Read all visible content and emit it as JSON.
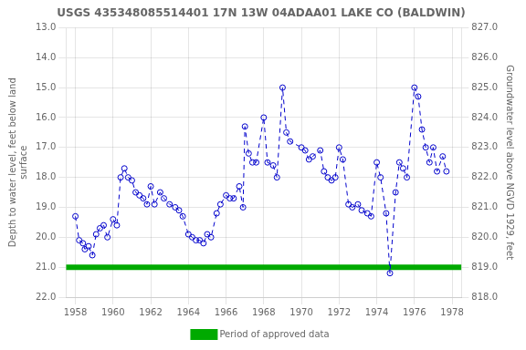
{
  "chart_data": {
    "type": "line",
    "title": "USGS 435348085514401 17N 13W 04ADAA01 LAKE CO (BALDWIN)",
    "ylabel": "Depth to water level, feet below land\nsurface",
    "y2label": "Groundwater level above NGVD 1929, feet",
    "x": [
      1958.0,
      1958.2,
      1958.4,
      1958.5,
      1958.7,
      1958.9,
      1959.1,
      1959.3,
      1959.5,
      1959.7,
      1960.0,
      1960.2,
      1960.4,
      1960.6,
      1960.8,
      1961.0,
      1961.2,
      1961.4,
      1961.6,
      1961.8,
      1962.0,
      1962.2,
      1962.5,
      1962.7,
      1963.0,
      1963.3,
      1963.5,
      1963.7,
      1964.0,
      1964.2,
      1964.4,
      1964.6,
      1964.8,
      1965.0,
      1965.2,
      1965.5,
      1965.7,
      1966.0,
      1966.2,
      1966.4,
      1966.7,
      1966.9,
      1967.0,
      1967.2,
      1967.4,
      1967.6,
      1968.0,
      1968.2,
      1968.5,
      1968.7,
      1969.0,
      1969.2,
      1969.4,
      1970.0,
      1970.2,
      1970.4,
      1970.6,
      1971.0,
      1971.2,
      1971.4,
      1971.6,
      1971.8,
      1972.0,
      1972.2,
      1972.5,
      1972.7,
      1973.0,
      1973.2,
      1973.5,
      1973.7,
      1974.0,
      1974.2,
      1974.5,
      1974.7,
      1975.0,
      1975.2,
      1975.4,
      1975.6,
      1976.0,
      1976.2,
      1976.4,
      1976.6,
      1976.8,
      1977.0,
      1977.2,
      1977.5,
      1977.7
    ],
    "series": [
      {
        "color": "#0000cc",
        "marker": "circle",
        "line_style": "dashed",
        "values": [
          19.3,
          20.1,
          20.2,
          20.4,
          20.3,
          20.6,
          19.9,
          19.7,
          19.6,
          20.0,
          19.4,
          19.6,
          18.0,
          17.7,
          18.0,
          18.1,
          18.5,
          18.6,
          18.7,
          18.9,
          18.3,
          18.9,
          18.5,
          18.7,
          18.9,
          19.0,
          19.1,
          19.3,
          19.9,
          20.0,
          20.1,
          20.1,
          20.2,
          19.9,
          20.0,
          19.2,
          18.9,
          18.6,
          18.7,
          18.7,
          18.3,
          19.0,
          16.3,
          17.2,
          17.5,
          17.5,
          16.0,
          17.5,
          17.6,
          18.0,
          15.0,
          16.5,
          16.8,
          17.0,
          17.1,
          17.4,
          17.3,
          17.1,
          17.8,
          18.0,
          18.1,
          18.0,
          17.0,
          17.4,
          18.9,
          19.0,
          18.9,
          19.1,
          19.2,
          19.3,
          17.5,
          18.0,
          19.2,
          21.2,
          18.5,
          17.5,
          17.7,
          18.0,
          15.0,
          15.3,
          16.4,
          17.0,
          17.5,
          17.0,
          17.8,
          17.3,
          17.8
        ]
      },
      {
        "name": "Period of approved data",
        "color": "#00aa00",
        "line_style": "solid",
        "x": [
          1957.5,
          1978.5
        ],
        "values": [
          21.0,
          21.0
        ]
      }
    ],
    "xlim": [
      1957.5,
      1978.5
    ],
    "xticks": [
      1958,
      1960,
      1962,
      1964,
      1966,
      1968,
      1970,
      1972,
      1974,
      1976,
      1978
    ],
    "ylim": [
      22.0,
      13.0
    ],
    "yticks": [
      {
        "value": 13.0,
        "label": "13.0"
      },
      {
        "value": 14.0,
        "label": "14.0"
      },
      {
        "value": 15.0,
        "label": "15.0"
      },
      {
        "value": 16.0,
        "label": "16.0"
      },
      {
        "value": 17.0,
        "label": "17.0"
      },
      {
        "value": 18.0,
        "label": "18.0"
      },
      {
        "value": 19.0,
        "label": "19.0"
      },
      {
        "value": 20.0,
        "label": "20.0"
      },
      {
        "value": 21.0,
        "label": "21.0"
      },
      {
        "value": 22.0,
        "label": "22.0"
      }
    ],
    "y2lim": [
      818.0,
      827.0
    ],
    "y2ticks": [
      {
        "value": 818.0,
        "label": "818.0"
      },
      {
        "value": 819.0,
        "label": "819.0"
      },
      {
        "value": 820.0,
        "label": "820.0"
      },
      {
        "value": 821.0,
        "label": "821.0"
      },
      {
        "value": 822.0,
        "label": "822.0"
      },
      {
        "value": 823.0,
        "label": "823.0"
      },
      {
        "value": 824.0,
        "label": "824.0"
      },
      {
        "value": 825.0,
        "label": "825.0"
      },
      {
        "value": 826.0,
        "label": "826.0"
      },
      {
        "value": 827.0,
        "label": "827.0"
      }
    ],
    "grid": true,
    "legend": "bottom"
  }
}
